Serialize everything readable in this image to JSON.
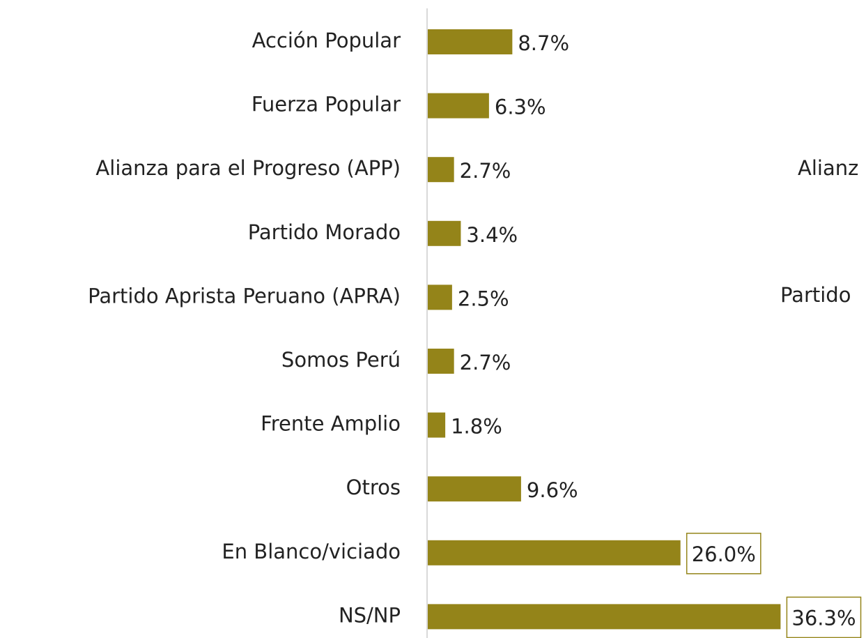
{
  "chart_data": {
    "type": "hbar",
    "categories": [
      "Acción Popular",
      "Fuerza Popular",
      "Alianza para el Progreso (APP)",
      "Partido Morado",
      "Partido Aprista Peruano (APRA)",
      "Somos Perú",
      "Frente Amplio",
      "Otros",
      "En Blanco/viciado",
      "NS/NP"
    ],
    "values": [
      8.7,
      6.3,
      2.7,
      3.4,
      2.5,
      2.7,
      1.8,
      9.6,
      26.0,
      36.3
    ],
    "value_labels": [
      "8.7%",
      "6.3%",
      "2.7%",
      "3.4%",
      "2.5%",
      "2.7%",
      "1.8%",
      "9.6%",
      "26.0%",
      "36.3%"
    ],
    "color": "#948419",
    "boxed_labels": [
      8,
      9
    ],
    "annotations": [
      "Alianz",
      "Partido"
    ]
  }
}
